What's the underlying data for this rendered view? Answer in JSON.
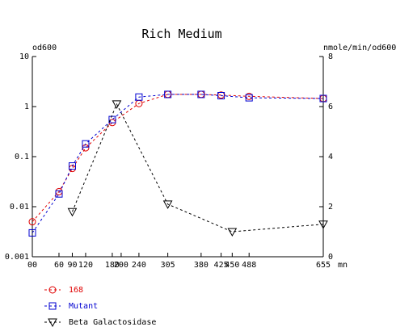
{
  "chart_data": {
    "type": "line",
    "title": "Rich Medium",
    "xlabel": "mn",
    "ylabel_left": "od600",
    "ylabel_right": "nmole/min/od600",
    "x_ticks": [
      0,
      60,
      90,
      120,
      180,
      200,
      240,
      305,
      380,
      425,
      450,
      488,
      655
    ],
    "x_tick_labels": [
      "00",
      "60",
      "90",
      "120",
      "180",
      "200",
      "240",
      "305",
      "380",
      "425",
      "450",
      "488",
      "655"
    ],
    "xlim": [
      0,
      655
    ],
    "y_left_scale": "log",
    "y_left_ticks": [
      0.001,
      0.01,
      0.1,
      1,
      10
    ],
    "y_left_tick_labels": [
      "0.001",
      "0.01",
      "0.1",
      "1",
      "10"
    ],
    "y_left_lim": [
      0.001,
      10
    ],
    "y_right_ticks": [
      0,
      2,
      4,
      6,
      8
    ],
    "y_right_tick_labels": [
      "0",
      "2",
      "4",
      "6",
      "8"
    ],
    "y_right_lim": [
      0,
      8
    ],
    "grid": false,
    "legend_position": "bottom-left",
    "series": [
      {
        "name": "168",
        "axis": "left",
        "color": "#e00000",
        "marker": "circle",
        "x": [
          0,
          60,
          90,
          120,
          180,
          240,
          305,
          380,
          425,
          488,
          655
        ],
        "y": [
          0.005,
          0.02,
          0.058,
          0.15,
          0.48,
          1.15,
          1.75,
          1.75,
          1.7,
          1.6,
          1.45
        ]
      },
      {
        "name": "Mutant",
        "axis": "left",
        "color": "#0000d0",
        "marker": "square",
        "x": [
          0,
          60,
          90,
          120,
          180,
          240,
          305,
          380,
          425,
          488,
          655
        ],
        "y": [
          0.003,
          0.018,
          0.065,
          0.18,
          0.55,
          1.55,
          1.75,
          1.75,
          1.65,
          1.5,
          1.45
        ]
      },
      {
        "name": "Beta Galactosidase",
        "axis": "right",
        "color": "#000000",
        "marker": "triangle-down",
        "x": [
          90,
          190,
          305,
          450,
          655
        ],
        "y": [
          1.8,
          6.1,
          2.1,
          1.0,
          1.3
        ]
      }
    ]
  }
}
